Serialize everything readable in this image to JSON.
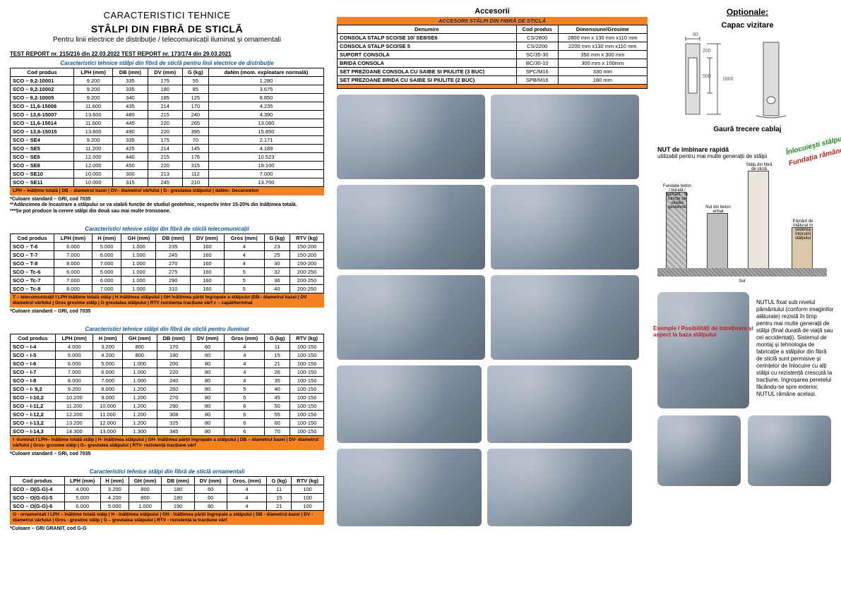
{
  "header": {
    "line1": "CARACTERISTICI TEHNICE",
    "line2": "STÂLPI DIN FIBRĂ DE STICLĂ",
    "subtitle": "Pentru linii electrice de distribuție / telecomunicații iluminat și ornamentali"
  },
  "reports": "TEST REPORT nr. 215/216 din 22.03.2022      TEST REPORT nr. 173/174 din 29.03.2021",
  "table1": {
    "title": "Caracteristici tehnice stâlpi din fibră de sticlă pentru linii electrice de distribuție",
    "cols": [
      "Cod produs",
      "LPH (mm)",
      "DB (mm)",
      "DV (mm)",
      "G (kg)",
      "daNm (mom. exploatare normală)"
    ],
    "rows": [
      [
        "SCO – 9,2-10001",
        "9.200",
        "335",
        "175",
        "55",
        "1.280"
      ],
      [
        "SCO – 9,2-10002",
        "9.200",
        "335",
        "180",
        "85",
        "3.675"
      ],
      [
        "SCO – 9,2-10005",
        "9.200",
        "340",
        "185",
        "125",
        "8.850"
      ],
      [
        "SCO – 11,6-15006",
        "11.600",
        "435",
        "214",
        "170",
        "4.235"
      ],
      [
        "SCO – 13,6-15007",
        "13.600",
        "480",
        "215",
        "240",
        "4.390"
      ],
      [
        "SCO – 11,6-15014",
        "11.600",
        "445",
        "220",
        "265",
        "13.080"
      ],
      [
        "SCO – 13,6-15015",
        "13.600",
        "490",
        "220",
        "395",
        "15.850"
      ],
      [
        "SCO – SE4",
        "9.200",
        "335",
        "175",
        "70",
        "2.171"
      ],
      [
        "SCO – SE5",
        "11.200",
        "425",
        "214",
        "145",
        "4.189"
      ],
      [
        "SCO – SE6",
        "12.000",
        "440",
        "215",
        "176",
        "10.523"
      ],
      [
        "SCO – SE8",
        "12.000",
        "450",
        "220",
        "315",
        "19.100"
      ],
      [
        "SCO – SE10",
        "10.000",
        "300",
        "213",
        "112",
        "7.000"
      ],
      [
        "SCO – SE11",
        "10.000",
        "315",
        "245",
        "210",
        "13.700"
      ]
    ],
    "legend": "LPH – înălțime totală | DB – diametrul bazei | DV– diametrul vârfului | G– greutatea stâlpului | daNm– Decanewton",
    "notes": "*Culoare standard – GRI, cod 7035\n**Adâncimea de încastrare a stâlpului se va stabili funcție de studiul geotehnic, respectiv între 15-20% din înălțimea totală.\n***Se pot produce la cerere stâlpi din două sau mai multe tronsoane."
  },
  "table2": {
    "title": "Caracteristici tehnice stâlpi din fibră de sticlă telecomunicații",
    "cols": [
      "Cod produs",
      "LPH (mm)",
      "H (mm)",
      "GH (mm)",
      "DB (mm)",
      "DV (mm)",
      "Gros (mm)",
      "G (kg)",
      "RTV (kg)"
    ],
    "rows": [
      [
        "SCO – T-6",
        "6.000",
        "5.000",
        "1.000",
        "235",
        "160",
        "4",
        "23",
        "150-200"
      ],
      [
        "SCO – T-7",
        "7.000",
        "6.000",
        "1.000",
        "245",
        "160",
        "4",
        "25",
        "150-200"
      ],
      [
        "SCO – T-8",
        "8.000",
        "7.000",
        "1.000",
        "270",
        "160",
        "4",
        "30",
        "150-200"
      ],
      [
        "SCO – Tc-6",
        "6.000",
        "5.000",
        "1.000",
        "275",
        "160",
        "5",
        "32",
        "200-250"
      ],
      [
        "SCO – Tc-7",
        "7.000",
        "6.000",
        "1.000",
        "290",
        "160",
        "5",
        "36",
        "200-250"
      ],
      [
        "SCO – Tc-8",
        "8.000",
        "7.000",
        "1.000",
        "310",
        "160",
        "5",
        "40",
        "200-250"
      ]
    ],
    "legend": "T – telecomunicații I LPH înălțime totală stâlp | H înălțimea stâlpului | GH înălțimea părții îngropate a stâlpului |DB– diametrul bazei | DV diametrul vârfului | Gros grosime stâlp | G greutatea stâlpului | RTV rezistența tracțiune vârf c – capăt/terminal",
    "notes": "*Culoare standard – GRI, cod 7035"
  },
  "table3": {
    "title": "Caracteristici tehnice stâlpi din fibră de sticlă pentru iluminat",
    "cols": [
      "Cod produs",
      "LPH (mm)",
      "H (mm)",
      "GH (mm)",
      "DB (mm)",
      "DV (mm)",
      "Gros (mm)",
      "G (kg)",
      "RTV (kg)"
    ],
    "rows": [
      [
        "SCO – I-4",
        "4.000",
        "3.200",
        "800",
        "170",
        "60",
        "4",
        "11",
        "100-150"
      ],
      [
        "SCO – I-5",
        "5.000",
        "4.200",
        "800",
        "190",
        "60",
        "4",
        "15",
        "100-150"
      ],
      [
        "SCO – I-6",
        "6.000",
        "5.000",
        "1.000",
        "200",
        "80",
        "4",
        "21",
        "100-150"
      ],
      [
        "SCO – I-7",
        "7.000",
        "6.000",
        "1.000",
        "220",
        "80",
        "4",
        "26",
        "100-150"
      ],
      [
        "SCO – I-8",
        "8.000",
        "7.000",
        "1.000",
        "240",
        "80",
        "4",
        "35",
        "100-150"
      ],
      [
        "SCO – I- 9,2",
        "9.200",
        "8.000",
        "1.200",
        "260",
        "80",
        "5",
        "40",
        "100-150"
      ],
      [
        "SCO – I-10,2",
        "10.200",
        "9.000",
        "1.200",
        "270",
        "80",
        "5",
        "45",
        "100-150"
      ],
      [
        "SCO – I-11,2",
        "11.200",
        "10.000",
        "1.200",
        "290",
        "80",
        "6",
        "50",
        "100-150"
      ],
      [
        "SCO – I-12,2",
        "12.200",
        "11.000",
        "1.200",
        "308",
        "80",
        "6",
        "55",
        "100-150"
      ],
      [
        "SCO – I-13,2",
        "13.200",
        "12.000",
        "1.200",
        "325",
        "80",
        "6",
        "60",
        "100-150"
      ],
      [
        "SCO – I-14,3",
        "14.300",
        "13.000",
        "1.300",
        "345",
        "80",
        "6",
        "70",
        "100-150"
      ]
    ],
    "legend": "I -iluminat I LPH– înălțime totală stâlp | H- înălțimea stâlpului | GH- înălțimea părții îngropate a stâlpului | DB – diametrul bazei | DV- diametrul vârfului | Gros- grosime stâlp | G– greutatea stâlpului | RTV- rezistență tracțiune vârf",
    "notes": "*Culoare standard – GRI, cod 7035"
  },
  "table4": {
    "title": "Caracteristici tehnice stâlpi din fibră de sticlă ornamentali",
    "cols": [
      "Cod produs",
      "LPH (mm)",
      "H (mm)",
      "GH (mm)",
      "DB (mm)",
      "DV (mm)",
      "Gros. (mm)",
      "G (kg)",
      "RTV (kg)"
    ],
    "rows": [
      [
        "SCO – O(G-G)-4",
        "4.000",
        "3.200",
        "800",
        "180",
        "60",
        "4",
        "11",
        "100"
      ],
      [
        "SCO – O(G-G)-5",
        "5.000",
        "4.200",
        "800",
        "180",
        "60",
        "4",
        "15",
        "100"
      ],
      [
        "SCO – O(G-G)-6",
        "6.000",
        "5.000",
        "1.000",
        "190",
        "80",
        "4",
        "21",
        "100"
      ]
    ],
    "legend": "O - ornamentali I LPH    – înălțime totală stâlp | H    - înălțimea stâlpului | GH    - înălțimea părții îngropate a stâlpului | DB    - diametrul bazei | DV    - diametrul vârfului | Gros   - grosime stâlp | G    – greutatea stâlpului | RTV   - rezistență la tracțiune vârf",
    "notes": "*Culoare – GRI GRANIT, cod G-G"
  },
  "accesorii": {
    "heading": "Accesorii",
    "banner": "ACCESORII STÂLPI DIN FIBRĂ DE STICLĂ",
    "cols": [
      "Denumire",
      "Cod produs",
      "Dimensiune/Grosime"
    ],
    "rows": [
      [
        "CONSOLA STALP SCO/SE 10/ SE8/SE6",
        "CS/2800",
        "2800 mm x 130 mm x110 mm"
      ],
      [
        "CONSOLA STALP SCO/SE 5",
        "CS/2200",
        "2200 mm x130 mm x110 mm"
      ],
      [
        "SUPORT CONSOLA",
        "SC/35-30",
        "350 mm x 300 mm"
      ],
      [
        "BRIDA CONSOLA",
        "BC/30-10",
        "300 mm x 100mm"
      ],
      [
        "SET PREZOANE CONSOLA CU SAIBE SI PIULITE (3 BUC)",
        "SPC/M16",
        "330 mm"
      ],
      [
        "SET PREZOANE BRIDA CU SAIBE SI PIULITE (2 BUC)",
        "SPB/M16",
        "180 mm"
      ]
    ]
  },
  "optionale": {
    "title": "Opționale:",
    "capac": "Capac vizitare",
    "gaura": "Gaură trecere cablaj",
    "nut_title": "NUT de îmbinare rapidă",
    "nut_sub": "utilizabil pentru mai multe generații de stâlpi",
    "stamp1": "Înlocuiești stâlpul",
    "stamp2": "Fundația rămâne",
    "diag_labels": {
      "a": "Fundație beton / burată / pământ - în funcție de studiul geotehnic",
      "b": "Nut din beton armat",
      "c": "Stâlp din fibră de sticlă",
      "d": "Pământ de înlăturat în vederea înlocuirii stâlpului",
      "sol": "Sol"
    },
    "desc": "NUTUL fixat sub nivelul pământului (conform imaginilor alăturate) rezistă în timp pentru mai multe generații de stâlpi (final durată de viață sau cei accidentați). Sistemul de montaj și tehnologia de fabricație a stâlpilor din fibră de sticlă sunt permisive și cerințelor de înlocuire cu alți stâlpi cu rezistență crescută la tracțiune, îngroșarea peretelui făcându-se spre exterior, NUTUL rămâne același.",
    "overlay": "Exemple / Posibilități de întreținere și aspect la baza stâlpului"
  },
  "dims": {
    "d1": "80",
    "d2": "200",
    "d3": "500",
    "d4": "1800"
  }
}
